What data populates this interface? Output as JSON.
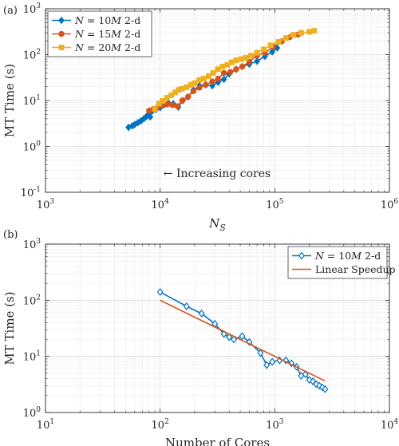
{
  "chart_data": [
    {
      "type": "line",
      "panel_label": "(a)",
      "xlabel": "N_S",
      "ylabel": "MT Time (s)",
      "xscale": "log",
      "yscale": "log",
      "xlim": [
        1000,
        1000000
      ],
      "ylim": [
        0.1,
        1000
      ],
      "grid": true,
      "legend_position": "top-left",
      "x_tick_labels": [
        "10^3",
        "10^4",
        "10^5",
        "10^6"
      ],
      "y_tick_labels": [
        "10^-1",
        "10^0",
        "10^1",
        "10^2",
        "10^3"
      ],
      "annotation": "← Increasing cores",
      "series": [
        {
          "name": "N = 10M 2-d",
          "color": "#0072BD",
          "marker": "diamond",
          "x": [
            5300,
            5700,
            6000,
            6400,
            6800,
            7200,
            7600,
            8000,
            8200,
            8600,
            9200,
            10000,
            10800,
            11800,
            13000,
            14400,
            15800,
            17500,
            19500,
            22000,
            25000,
            28500,
            32000,
            36000,
            40000,
            46000,
            52000,
            60000,
            70000,
            82000,
            95000,
            105000
          ],
          "y": [
            2.6,
            2.8,
            3.0,
            3.3,
            3.6,
            4.0,
            4.5,
            5.2,
            4.4,
            6.0,
            6.4,
            7.0,
            8.0,
            8.7,
            8.5,
            7.2,
            10.0,
            12.0,
            17.0,
            21.0,
            22.0,
            21.0,
            25.0,
            29.0,
            38.0,
            48.0,
            55.0,
            62.0,
            72.0,
            92.0,
            115.0,
            140.0
          ]
        },
        {
          "name": "N = 15M 2-d",
          "color": "#D95319",
          "marker": "circle",
          "x": [
            8000,
            8700,
            9500,
            10500,
            11500,
            12800,
            14200,
            15600,
            17500,
            19500,
            22000,
            25000,
            28500,
            32000,
            36000,
            41000,
            46000,
            52000,
            60000,
            70000,
            82000,
            97000,
            115000,
            135000,
            160000
          ],
          "y": [
            6.0,
            6.5,
            7.0,
            8.0,
            8.3,
            8.0,
            7.5,
            10.0,
            12.0,
            16.0,
            19.0,
            22.0,
            26.0,
            30.0,
            40.0,
            42.0,
            48.0,
            55.0,
            70.0,
            95.0,
            110.0,
            150.0,
            195.0,
            240.0,
            275.0
          ]
        },
        {
          "name": "N = 20M 2-d",
          "color": "#EDB120",
          "marker": "square",
          "x": [
            9000,
            9800,
            10500,
            11500,
            12500,
            13500,
            14500,
            15500,
            17000,
            18500,
            20000,
            22000,
            24000,
            26500,
            29000,
            32000,
            35000,
            38500,
            42000,
            46000,
            51000,
            56000,
            62000,
            70000,
            80000,
            92000,
            108000,
            125000,
            145000,
            170000,
            200000,
            220000
          ],
          "y": [
            6.5,
            8.5,
            9.8,
            11.5,
            13.0,
            15.0,
            17.0,
            18.0,
            19.5,
            22.0,
            24.0,
            28.0,
            30.0,
            34.0,
            40.0,
            48.0,
            55.0,
            60.0,
            68.0,
            75.0,
            80.0,
            85.0,
            95.0,
            110.0,
            130.0,
            160.0,
            190.0,
            230.0,
            270.0,
            300.0,
            315.0,
            330.0
          ]
        }
      ]
    },
    {
      "type": "line",
      "panel_label": "(b)",
      "xlabel": "Number of Cores",
      "ylabel": "MT Time (s)",
      "xscale": "log",
      "yscale": "log",
      "xlim": [
        10,
        10000
      ],
      "ylim": [
        1,
        1000
      ],
      "grid": true,
      "legend_position": "top-right",
      "x_tick_labels": [
        "10^1",
        "10^2",
        "10^3",
        "10^4"
      ],
      "y_tick_labels": [
        "10^0",
        "10^1",
        "10^2",
        "10^3"
      ],
      "series": [
        {
          "name": "N = 10M 2-d",
          "color": "#0072BD",
          "marker": "diamond",
          "x": [
            100,
            170,
            230,
            300,
            360,
            400,
            440,
            520,
            600,
            750,
            850,
            950,
            1100,
            1250,
            1400,
            1550,
            1700,
            1850,
            2000,
            2150,
            2300,
            2450,
            2600,
            2750
          ],
          "y": [
            140,
            78,
            58,
            38,
            25,
            22,
            20,
            23,
            18,
            11.5,
            7.0,
            8.0,
            8.5,
            8.5,
            7.5,
            6.5,
            4.5,
            4.8,
            3.8,
            3.6,
            3.2,
            3.0,
            2.8,
            2.6
          ]
        },
        {
          "name": "Linear Speedup",
          "color": "#D95319",
          "marker": "none",
          "x": [
            100,
            2750
          ],
          "y": [
            100,
            3.64
          ]
        }
      ]
    }
  ]
}
